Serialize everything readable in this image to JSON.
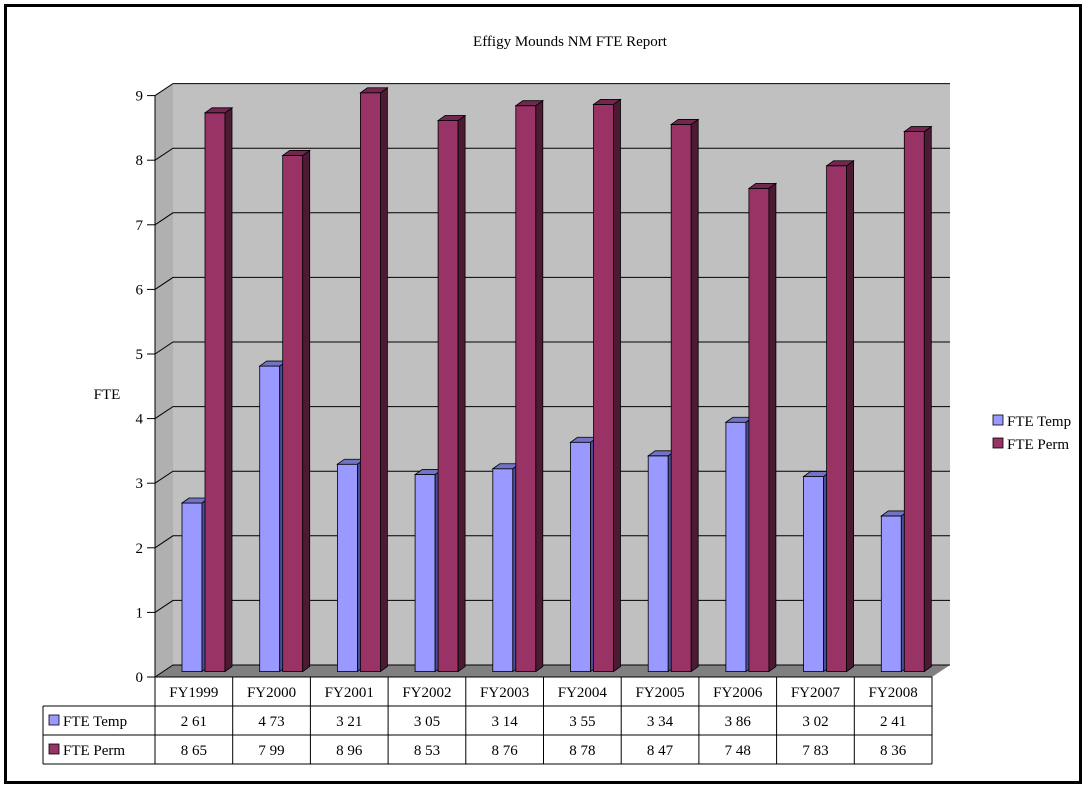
{
  "chart_data": {
    "type": "bar",
    "title": "Effigy Mounds NM FTE Report",
    "ylabel": "FTE",
    "xlabel": "",
    "ylim": [
      0,
      9
    ],
    "yticks": [
      "0",
      "1",
      "2",
      "3",
      "4",
      "5",
      "6",
      "7",
      "8",
      "9"
    ],
    "categories": [
      "FY1999",
      "FY2000",
      "FY2001",
      "FY2002",
      "FY2003",
      "FY2004",
      "FY2005",
      "FY2006",
      "FY2007",
      "FY2008"
    ],
    "series": [
      {
        "name": "FTE Temp",
        "values": [
          2.61,
          4.73,
          3.21,
          3.05,
          3.14,
          3.55,
          3.34,
          3.86,
          3.02,
          2.41
        ],
        "labels": [
          "2 61",
          "4 73",
          "3 21",
          "3 05",
          "3 14",
          "3 55",
          "3 34",
          "3 86",
          "3 02",
          "2 41"
        ],
        "color": "#9999ff",
        "side_color": "#4c4c99",
        "top_color": "#7373c6"
      },
      {
        "name": "FTE Perm",
        "values": [
          8.65,
          7.99,
          8.96,
          8.53,
          8.76,
          8.78,
          8.47,
          7.48,
          7.83,
          8.36
        ],
        "labels": [
          "8 65",
          "7 99",
          "8 96",
          "8 53",
          "8 76",
          "8 78",
          "8 47",
          "7 48",
          "7 83",
          "8 36"
        ],
        "color": "#993366",
        "side_color": "#4d1a33",
        "top_color": "#732650"
      }
    ],
    "grid": true,
    "legend": "right",
    "data_table": true,
    "wall_color": "#c0c0c0",
    "floor_color": "#808080"
  }
}
